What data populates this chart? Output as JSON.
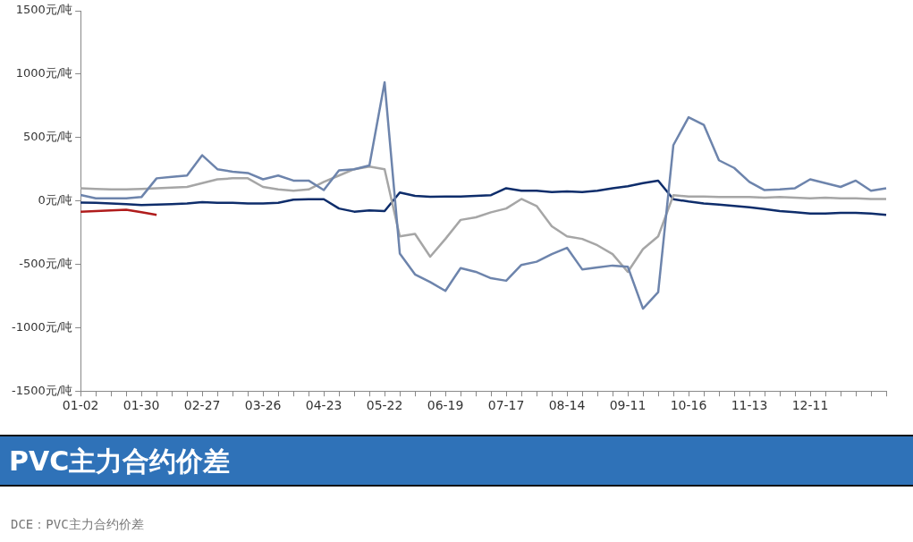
{
  "chart_data": {
    "type": "line",
    "categories": [
      "01-02",
      null,
      null,
      null,
      "01-30",
      null,
      null,
      null,
      "02-27",
      null,
      null,
      null,
      "03-26",
      null,
      null,
      null,
      "04-23",
      null,
      null,
      null,
      "05-22",
      null,
      null,
      null,
      "06-19",
      null,
      null,
      null,
      "07-17",
      null,
      null,
      null,
      "08-14",
      null,
      null,
      null,
      "09-11",
      null,
      null,
      null,
      "10-16",
      null,
      null,
      null,
      "11-13",
      null,
      null,
      null,
      "12-11",
      null,
      null,
      null,
      null,
      null
    ],
    "series": [
      {
        "color": "#6d84ac",
        "values": [
          46,
          20,
          20,
          20,
          30,
          178,
          190,
          200,
          360,
          250,
          230,
          220,
          170,
          200,
          160,
          160,
          85,
          240,
          250,
          280,
          935,
          -415,
          -580,
          -640,
          -710,
          -530,
          -560,
          -610,
          -630,
          -505,
          -480,
          -420,
          -370,
          -540,
          -525,
          -510,
          -520,
          -850,
          -720,
          440,
          660,
          600,
          320,
          260,
          150,
          85,
          90,
          100,
          170,
          140,
          110,
          160,
          80,
          100
        ]
      },
      {
        "color": "#a6a6a6",
        "values": [
          100,
          95,
          90,
          90,
          95,
          100,
          105,
          110,
          140,
          170,
          178,
          178,
          110,
          90,
          80,
          90,
          150,
          200,
          250,
          270,
          250,
          -280,
          -260,
          -440,
          -300,
          -150,
          -130,
          -90,
          -60,
          15,
          -40,
          -200,
          -280,
          -300,
          -350,
          -420,
          -560,
          -380,
          -280,
          45,
          35,
          35,
          30,
          30,
          30,
          25,
          30,
          25,
          20,
          25,
          20,
          20,
          15,
          15
        ]
      },
      {
        "color": "#0e2d6b",
        "values": [
          -13,
          -15,
          -20,
          -25,
          -33,
          -30,
          -25,
          -20,
          -10,
          -15,
          -15,
          -20,
          -20,
          -15,
          10,
          13,
          13,
          -60,
          -85,
          -75,
          -80,
          66,
          40,
          33,
          35,
          35,
          40,
          45,
          100,
          80,
          80,
          70,
          75,
          70,
          80,
          100,
          115,
          140,
          160,
          13,
          -5,
          -20,
          -30,
          -40,
          -50,
          -65,
          -80,
          -90,
          -100,
          -100,
          -95,
          -95,
          -100,
          -110
        ]
      },
      {
        "color": "#b01c1c",
        "values": [
          -85,
          -80,
          -75,
          -70,
          -90,
          -110,
          null,
          null,
          null,
          null,
          null,
          null,
          null,
          null,
          null,
          null,
          null,
          null,
          null,
          null,
          null,
          null,
          null,
          null,
          null,
          null,
          null,
          null,
          null,
          null,
          null,
          null,
          null,
          null,
          null,
          null,
          null,
          null,
          null,
          null,
          null,
          null,
          null,
          null,
          null,
          null,
          null,
          null,
          null,
          null,
          null,
          null,
          null,
          null
        ]
      }
    ],
    "ylim": [
      -1500,
      1500
    ],
    "yticks": [
      {
        "value": -1500,
        "label": "-1500元/吨"
      },
      {
        "value": -1000,
        "label": "-1000元/吨"
      },
      {
        "value": -500,
        "label": "-500元/吨"
      },
      {
        "value": 0,
        "label": "0元/吨"
      },
      {
        "value": 500,
        "label": "500元/吨"
      },
      {
        "value": 1000,
        "label": "1000元/吨"
      },
      {
        "value": 1500,
        "label": "1500元/吨"
      }
    ],
    "grid": false,
    "legend": false,
    "marker": "none",
    "line_style": "solid",
    "annotations": [
      "PVC主力合约价差",
      "DCE：PVC主力合约价差"
    ]
  }
}
